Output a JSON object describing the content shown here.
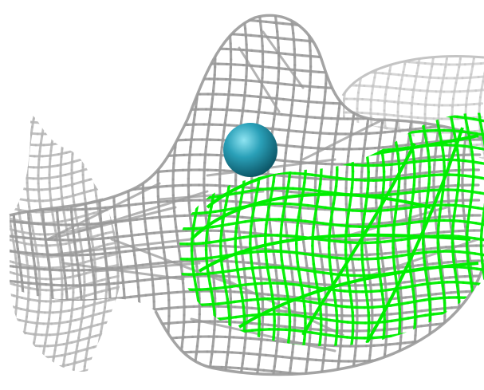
{
  "scene": {
    "background": "#ffffff",
    "meshes": [
      {
        "id": "outer",
        "color": "#9a9a9a"
      },
      {
        "id": "back",
        "color": "#c4c4c4"
      },
      {
        "id": "fin",
        "color": "#b5b5b5"
      },
      {
        "id": "highlight",
        "color": "#00ee00"
      }
    ],
    "sphere": {
      "color": "#2aa0b8",
      "highlight": "#8fe4f2",
      "shade": "#0c5566"
    }
  }
}
